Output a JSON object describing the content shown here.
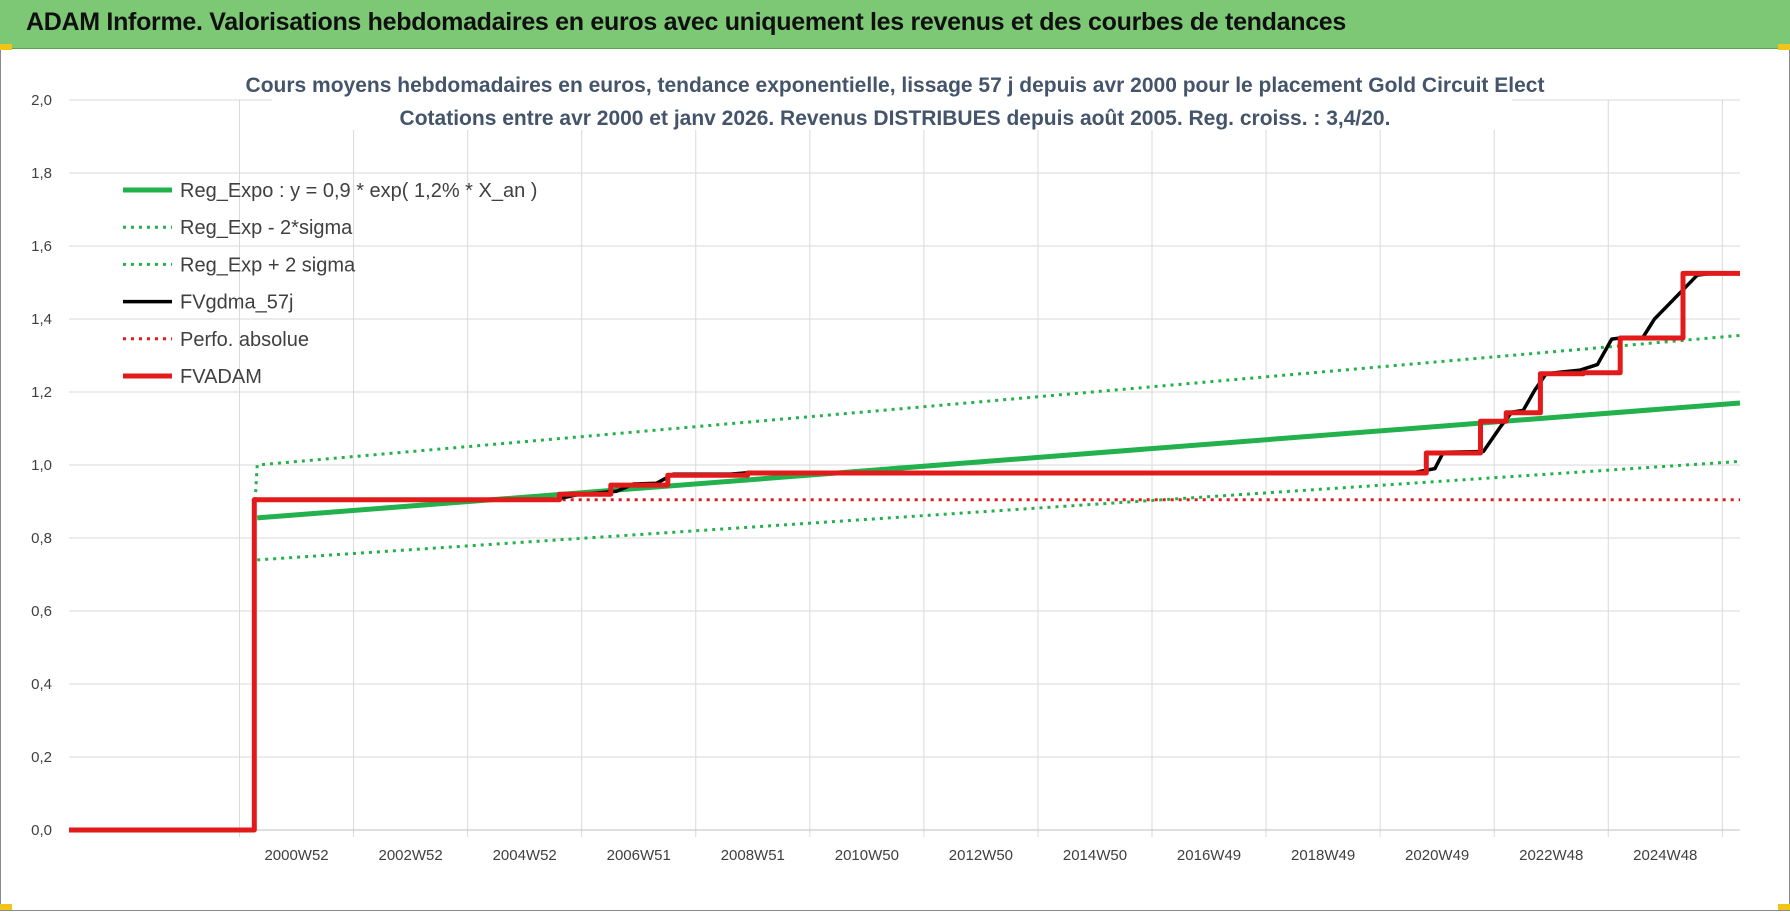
{
  "header": {
    "title": "ADAM Informe. Valorisations hebdomadaires en euros avec uniquement les revenus et des courbes de tendances"
  },
  "chart_data": {
    "type": "line",
    "title": "Cours moyens hebdomadaires en euros, tendance exponentielle, lissage 57 j depuis avr 2000 pour le placement Gold Circuit Elect",
    "subtitle": "Cotations entre avr 2000 et janv 2026. Revenus DISTRIBUES depuis août 2005. Reg. croiss. : 3,4/20.",
    "xlabel": "",
    "ylabel": "",
    "ylim": [
      0,
      2.0
    ],
    "xlim": [
      1997.0,
      2026.3
    ],
    "grid": true,
    "legend_position": "top-left",
    "yticks": [
      "0,0",
      "0,2",
      "0,4",
      "0,6",
      "0,8",
      "1,0",
      "1,2",
      "1,4",
      "1,6",
      "1,8",
      "2,0"
    ],
    "xticks": [
      {
        "label": "2000W52",
        "x": 2000.99
      },
      {
        "label": "2002W52",
        "x": 2002.99
      },
      {
        "label": "2004W52",
        "x": 2004.99
      },
      {
        "label": "2006W51",
        "x": 2006.99
      },
      {
        "label": "2008W51",
        "x": 2008.99
      },
      {
        "label": "2010W50",
        "x": 2010.99
      },
      {
        "label": "2012W50",
        "x": 2012.99
      },
      {
        "label": "2014W50",
        "x": 2014.99
      },
      {
        "label": "2016W49",
        "x": 2016.99
      },
      {
        "label": "2018W49",
        "x": 2018.99
      },
      {
        "label": "2020W49",
        "x": 2020.99
      },
      {
        "label": "2022W48",
        "x": 2022.99
      },
      {
        "label": "2024W48",
        "x": 2024.99
      }
    ],
    "series": [
      {
        "name": "Reg_Expo : y = 0,9 * exp( 1,2% *  X_an )",
        "color": "#22b14c",
        "style": "solid-thick",
        "x": [
          2000.3,
          2026.3
        ],
        "y": [
          0.855,
          1.17
        ]
      },
      {
        "name": "Reg_Exp - 2*sigma",
        "color": "#22b14c",
        "style": "dotted",
        "x": [
          2000.3,
          2026.3
        ],
        "y": [
          0.74,
          1.01
        ]
      },
      {
        "name": "Reg_Exp + 2 sigma",
        "color": "#22b14c",
        "style": "dotted",
        "x": [
          2000.25,
          2000.3,
          2026.3
        ],
        "y": [
          0.86,
          1.0,
          1.355
        ]
      },
      {
        "name": "FVgdma_57j",
        "color": "#000000",
        "style": "solid",
        "x": [
          1997.0,
          2000.25,
          2000.25,
          2005.5,
          2005.9,
          2006.6,
          2006.9,
          2007.3,
          2007.6,
          2008.6,
          2009.0,
          2020.6,
          2020.95,
          2021.1,
          2021.8,
          2022.1,
          2022.3,
          2022.5,
          2022.7,
          2022.9,
          2023.2,
          2023.5,
          2023.8,
          2024.05,
          2024.3,
          2024.6,
          2024.8,
          2025.3,
          2025.55,
          2025.8,
          2026.3
        ],
        "y": [
          0.0,
          0.0,
          0.905,
          0.905,
          0.918,
          0.928,
          0.948,
          0.95,
          0.975,
          0.975,
          0.98,
          0.98,
          0.99,
          1.035,
          1.037,
          1.105,
          1.145,
          1.15,
          1.205,
          1.25,
          1.255,
          1.26,
          1.275,
          1.345,
          1.35,
          1.35,
          1.4,
          1.48,
          1.52,
          1.525,
          1.525
        ]
      },
      {
        "name": "Perfo. absolue",
        "color": "#e21a1a",
        "style": "dotted",
        "x": [
          1997.0,
          2000.25,
          2000.25,
          2026.3
        ],
        "y": [
          0.0,
          0.0,
          0.905,
          0.905
        ]
      },
      {
        "name": "FVADAM",
        "color": "#e21a1a",
        "style": "step-thick",
        "x": [
          1997.0,
          2000.25,
          2000.25,
          2005.6,
          2005.6,
          2006.5,
          2006.5,
          2007.5,
          2007.5,
          2008.9,
          2008.9,
          2020.8,
          2020.8,
          2021.75,
          2021.75,
          2022.2,
          2022.2,
          2022.8,
          2022.8,
          2023.55,
          2023.55,
          2024.2,
          2024.2,
          2025.3,
          2025.3,
          2026.3
        ],
        "y": [
          0.0,
          0.0,
          0.905,
          0.905,
          0.92,
          0.92,
          0.945,
          0.945,
          0.972,
          0.972,
          0.978,
          0.978,
          1.033,
          1.033,
          1.12,
          1.12,
          1.143,
          1.143,
          1.25,
          1.25,
          1.253,
          1.253,
          1.348,
          1.348,
          1.525,
          1.525
        ]
      }
    ]
  }
}
